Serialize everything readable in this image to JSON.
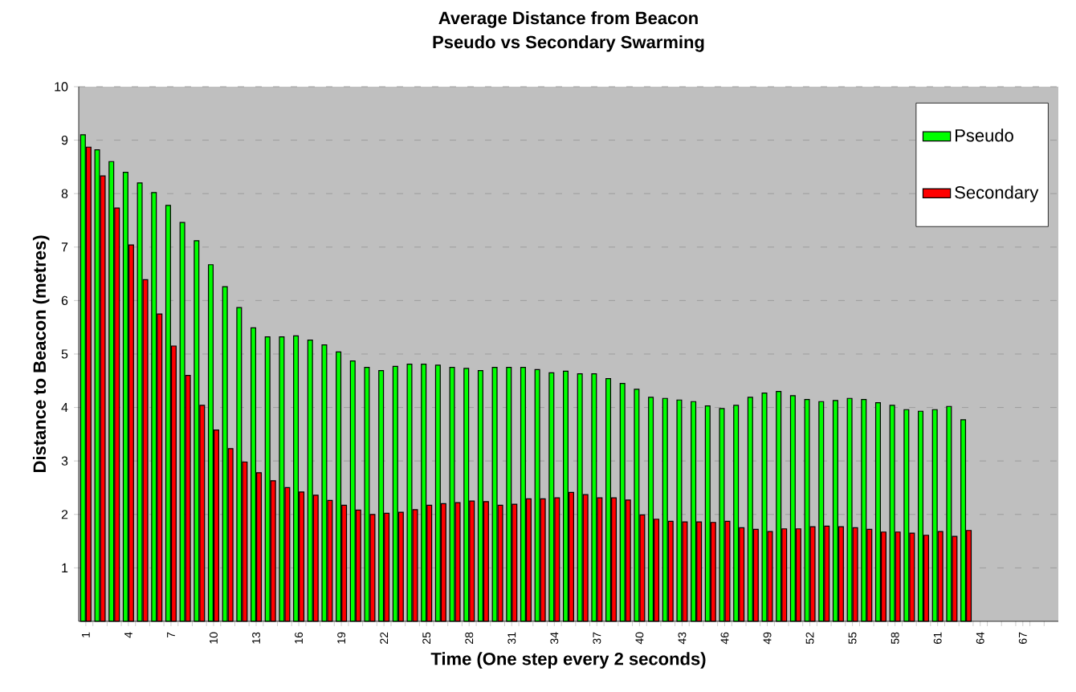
{
  "chart_data": {
    "type": "bar",
    "title": "Average Distance from Beacon",
    "subtitle": "Pseudo vs Secondary Swarming",
    "xlabel": "Time (One step every 2 seconds)",
    "ylabel": "Distance to Beacon (metres)",
    "categories": [
      "1",
      null,
      null,
      "4",
      null,
      null,
      "7",
      null,
      null,
      "10",
      null,
      null,
      "13",
      null,
      null,
      "16",
      null,
      null,
      "19",
      null,
      null,
      "22",
      null,
      null,
      "25",
      null,
      null,
      "28",
      null,
      null,
      "31",
      null,
      null,
      "34",
      null,
      null,
      "37",
      null,
      null,
      "40",
      null,
      null,
      "43",
      null,
      null,
      "46",
      null,
      null,
      "49",
      null,
      null,
      "52",
      null,
      null,
      "55",
      null,
      null,
      "58",
      null,
      null,
      "61",
      null,
      null,
      "64",
      null,
      null,
      "67",
      null,
      null
    ],
    "series": [
      {
        "name": "Pseudo",
        "color": "#00ff00",
        "values": [
          9.1,
          8.82,
          8.6,
          8.4,
          8.2,
          8.02,
          7.78,
          7.46,
          7.12,
          6.67,
          6.26,
          5.87,
          5.49,
          5.32,
          5.32,
          5.34,
          5.26,
          5.17,
          5.04,
          4.87,
          4.75,
          4.69,
          4.77,
          4.81,
          4.81,
          4.79,
          4.75,
          4.73,
          4.69,
          4.75,
          4.75,
          4.75,
          4.71,
          4.65,
          4.68,
          4.63,
          4.63,
          4.54,
          4.45,
          4.34,
          4.19,
          4.17,
          4.14,
          4.11,
          4.03,
          3.98,
          4.04,
          4.19,
          4.27,
          4.3,
          4.22,
          4.15,
          4.11,
          4.13,
          4.17,
          4.15,
          4.09,
          4.04,
          3.96,
          3.93,
          3.96,
          4.02,
          3.77,
          null,
          null,
          null,
          null,
          null,
          null
        ]
      },
      {
        "name": "Secondary",
        "color": "#ff0000",
        "values": [
          8.87,
          8.33,
          7.73,
          7.04,
          6.39,
          5.75,
          5.15,
          4.6,
          4.04,
          3.58,
          3.23,
          2.98,
          2.78,
          2.63,
          2.5,
          2.42,
          2.36,
          2.26,
          2.17,
          2.08,
          2.0,
          2.02,
          2.04,
          2.09,
          2.17,
          2.2,
          2.22,
          2.25,
          2.24,
          2.17,
          2.19,
          2.29,
          2.29,
          2.31,
          2.41,
          2.37,
          2.31,
          2.31,
          2.27,
          1.99,
          1.91,
          1.87,
          1.86,
          1.86,
          1.85,
          1.87,
          1.75,
          1.72,
          1.68,
          1.73,
          1.73,
          1.77,
          1.78,
          1.77,
          1.75,
          1.72,
          1.67,
          1.67,
          1.65,
          1.61,
          1.68,
          1.59,
          1.7,
          null,
          null,
          null,
          null,
          null,
          null
        ]
      }
    ],
    "ylim": [
      0,
      10
    ],
    "yticks": [
      1,
      2,
      3,
      4,
      5,
      6,
      7,
      8,
      9,
      10
    ],
    "grid": "y",
    "legend": "top right"
  }
}
